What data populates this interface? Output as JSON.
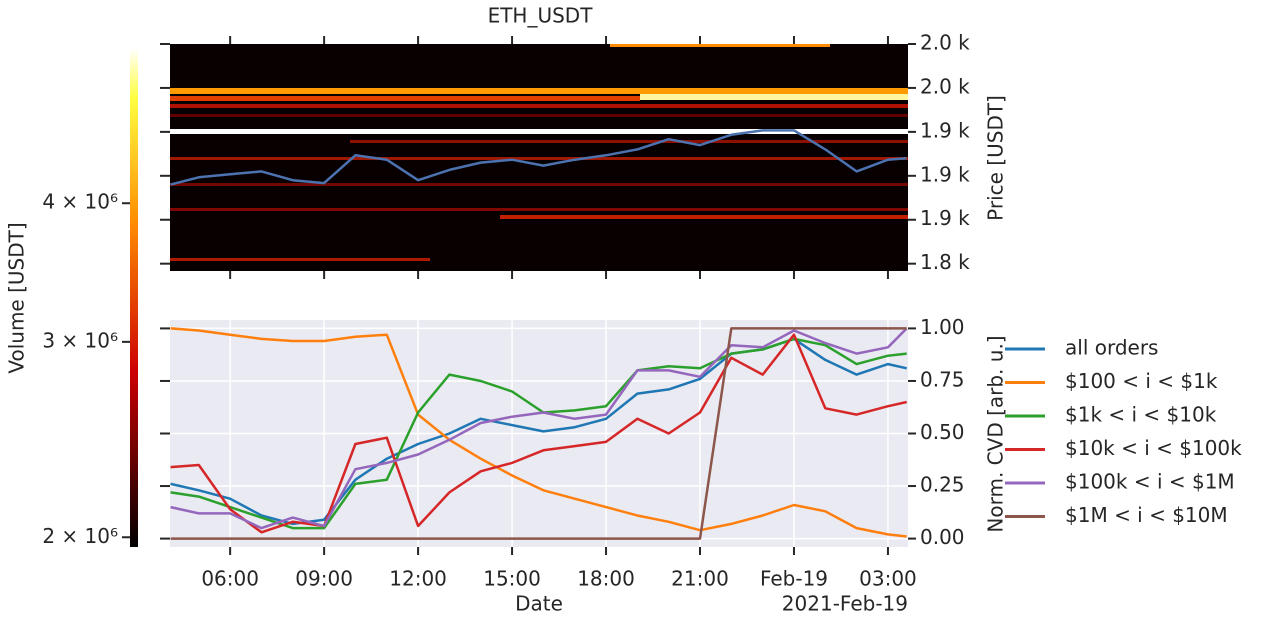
{
  "chart_data": [
    {
      "type": "line",
      "title": "ETH_USDT",
      "ylabel": "Price [USDT]",
      "x": [
        4.1,
        5,
        6,
        7,
        8,
        9,
        10,
        11,
        12,
        13,
        14,
        15,
        16,
        17,
        18,
        19,
        20,
        21,
        22,
        23,
        24,
        25,
        26,
        27,
        27.6
      ],
      "series": [
        {
          "color": "#4c72b0",
          "values": [
            1894,
            1899,
            1901,
            1903,
            1897,
            1895,
            1914,
            1911,
            1897,
            1904,
            1909,
            1911,
            1907,
            1911,
            1914,
            1918,
            1925,
            1921,
            1928,
            1931,
            1931,
            1918,
            1903,
            1911,
            1912
          ]
        }
      ],
      "xlim": [
        4.08,
        27.64
      ],
      "xticks": [
        6,
        9,
        12,
        15,
        18,
        21,
        24,
        27
      ],
      "ylim": [
        1835,
        1990
      ],
      "yticks": [
        {
          "value": 1990,
          "label": "2.0 k"
        },
        {
          "value": 1960,
          "label": "2.0 k"
        },
        {
          "value": 1930,
          "label": "1.9 k"
        },
        {
          "value": 1900,
          "label": "1.9 k"
        },
        {
          "value": 1870,
          "label": "1.9 k"
        },
        {
          "value": 1840,
          "label": "1.8 k"
        }
      ],
      "colorbar": {
        "label": "Volume [USDT]",
        "log": true,
        "colormap": "hot",
        "lim": [
          1960000,
          5520000
        ],
        "ticks": [
          {
            "value": 2000000,
            "label": "2 × 10⁶"
          },
          {
            "value": 3000000,
            "label": "3 × 10⁶"
          },
          {
            "value": 4000000,
            "label": "4 × 10⁶"
          }
        ]
      }
    },
    {
      "type": "line",
      "xlabel": "Date",
      "x_offset_label": "2021-Feb-19",
      "ylabel": "Norm. CVD [arb. u.]",
      "grid": true,
      "legend": "right",
      "x": [
        4.1,
        5,
        6,
        7,
        8,
        9,
        10,
        11,
        12,
        13,
        14,
        15,
        16,
        17,
        18,
        19,
        20,
        21,
        22,
        23,
        24,
        25,
        26,
        27,
        27.6
      ],
      "series": [
        {
          "name": "all orders",
          "color": "#1f77b4",
          "values": [
            0.26,
            0.23,
            0.19,
            0.11,
            0.07,
            0.09,
            0.28,
            0.38,
            0.45,
            0.5,
            0.57,
            0.54,
            0.51,
            0.53,
            0.57,
            0.69,
            0.71,
            0.76,
            0.88,
            0.9,
            0.95,
            0.85,
            0.78,
            0.83,
            0.81
          ]
        },
        {
          "name": "$100 < i < $1k",
          "color": "#ff7f0e",
          "values": [
            1.0,
            0.99,
            0.97,
            0.95,
            0.94,
            0.94,
            0.96,
            0.97,
            0.59,
            0.47,
            0.38,
            0.3,
            0.23,
            0.19,
            0.15,
            0.11,
            0.08,
            0.04,
            0.07,
            0.11,
            0.16,
            0.13,
            0.05,
            0.02,
            0.01
          ]
        },
        {
          "name": "$1k < i < $10k",
          "color": "#2ca02c",
          "values": [
            0.22,
            0.2,
            0.15,
            0.1,
            0.05,
            0.05,
            0.26,
            0.28,
            0.6,
            0.78,
            0.75,
            0.7,
            0.6,
            0.61,
            0.63,
            0.8,
            0.82,
            0.81,
            0.88,
            0.9,
            0.95,
            0.92,
            0.83,
            0.87,
            0.88
          ]
        },
        {
          "name": "$10k < i < $100k",
          "color": "#d62728",
          "values": [
            0.34,
            0.35,
            0.14,
            0.03,
            0.08,
            0.06,
            0.45,
            0.48,
            0.06,
            0.22,
            0.32,
            0.36,
            0.42,
            0.44,
            0.46,
            0.57,
            0.5,
            0.6,
            0.86,
            0.78,
            0.97,
            0.62,
            0.59,
            0.63,
            0.65
          ]
        },
        {
          "name": "$100k < i < $1M",
          "color": "#9467bd",
          "values": [
            0.15,
            0.12,
            0.12,
            0.05,
            0.1,
            0.06,
            0.33,
            0.36,
            0.4,
            0.47,
            0.55,
            0.58,
            0.6,
            0.57,
            0.59,
            0.8,
            0.8,
            0.77,
            0.92,
            0.91,
            0.99,
            0.93,
            0.88,
            0.91,
            1.0
          ]
        },
        {
          "name": "$1M < i < $10M",
          "color": "#8c564b",
          "values": [
            0,
            0,
            0,
            0,
            0,
            0,
            0,
            0,
            0,
            0,
            0,
            0,
            0,
            0,
            0,
            0,
            0,
            0,
            1,
            1,
            1,
            1,
            1,
            1,
            1
          ]
        }
      ],
      "xlim": [
        4.08,
        27.64
      ],
      "xticks": [
        {
          "value": 6,
          "label": "06:00"
        },
        {
          "value": 9,
          "label": "09:00"
        },
        {
          "value": 12,
          "label": "12:00"
        },
        {
          "value": 15,
          "label": "15:00"
        },
        {
          "value": 18,
          "label": "18:00"
        },
        {
          "value": 21,
          "label": "21:00"
        },
        {
          "value": 24,
          "label": "Feb-19"
        },
        {
          "value": 27,
          "label": "03:00"
        }
      ],
      "ylim": [
        -0.04,
        1.04
      ],
      "yticks": [
        {
          "value": 0,
          "label": "0.00"
        },
        {
          "value": 0.25,
          "label": "0.25"
        },
        {
          "value": 0.5,
          "label": "0.50"
        },
        {
          "value": 0.75,
          "label": "0.75"
        },
        {
          "value": 1,
          "label": "1.00"
        }
      ]
    }
  ]
}
